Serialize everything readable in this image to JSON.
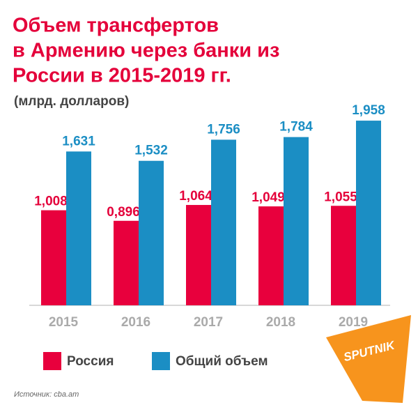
{
  "chart_data": {
    "type": "bar",
    "title": [
      "Объем трансфертов",
      "в Армению через банки из",
      "России в 2015-2019 гг."
    ],
    "subtitle": "(млрд. долларов)",
    "categories": [
      "2015",
      "2016",
      "2017",
      "2018",
      "2019"
    ],
    "series": [
      {
        "name": "Россия",
        "color": "#e8003d",
        "values": [
          1.008,
          0.896,
          1.064,
          1.049,
          1.055
        ],
        "value_labels": [
          "1,008",
          "0,896",
          "1,064",
          "1,049",
          "1,055"
        ]
      },
      {
        "name": "Общий объем",
        "color": "#1b8ec4",
        "values": [
          1.631,
          1.532,
          1.756,
          1.784,
          1.958
        ],
        "value_labels": [
          "1,631",
          "1,532",
          "1,756",
          "1,784",
          "1,958"
        ]
      }
    ],
    "source": "Источник: cba.am",
    "logo": "SPUTNIK"
  }
}
